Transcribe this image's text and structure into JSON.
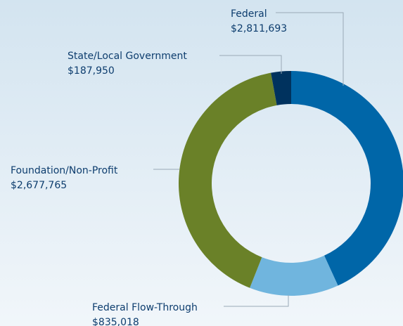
{
  "chart_data": {
    "type": "donut",
    "categories": [
      "Federal",
      "Federal Flow-Through",
      "Foundation/Non-Profit",
      "State/Local Government"
    ],
    "values": [
      2811693,
      835018,
      2677765,
      187950
    ],
    "value_labels": [
      "$2,811,693",
      "$835,018",
      "$2,677,765",
      "$187,950"
    ],
    "colors": [
      "#0066a8",
      "#70b5de",
      "#6a8128",
      "#00325e"
    ]
  }
}
